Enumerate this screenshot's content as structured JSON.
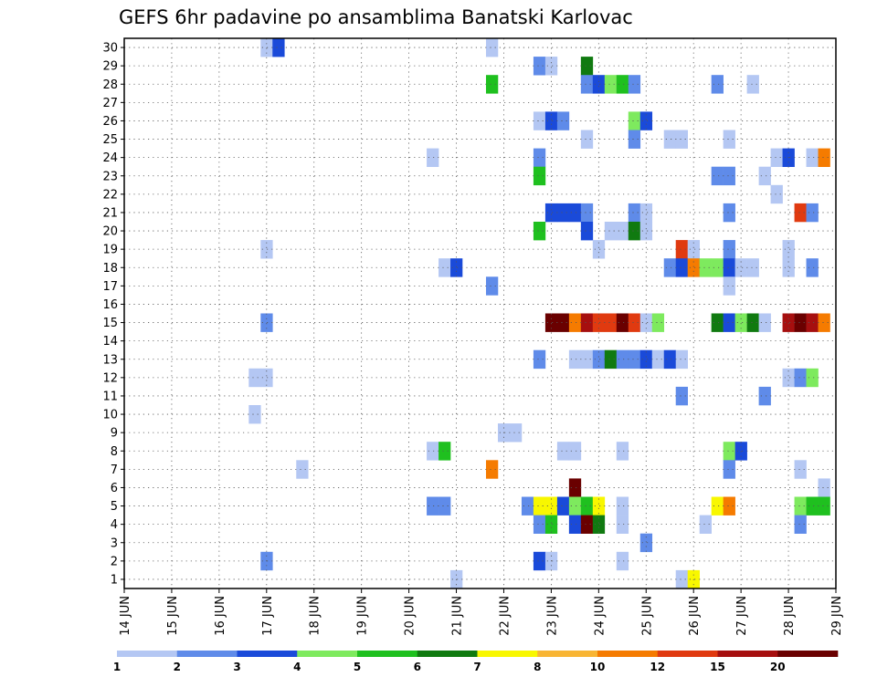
{
  "chart_data": {
    "type": "heatmap",
    "title": "GEFS 6hr padavine po ansamblima Banatski Karlovac",
    "xlabel": "",
    "ylabel": "",
    "x_tick_labels": [
      "14 JUN",
      "15 JUN",
      "16 JUN",
      "17 JUN",
      "18 JUN",
      "19 JUN",
      "20 JUN",
      "21 JUN",
      "22 JUN",
      "23 JUN",
      "24 JUN",
      "25 JUN",
      "26 JUN",
      "27 JUN",
      "28 JUN",
      "29 JUN"
    ],
    "y_tick_labels": [
      "1",
      "2",
      "3",
      "4",
      "5",
      "6",
      "7",
      "8",
      "9",
      "10",
      "11",
      "12",
      "13",
      "14",
      "15",
      "16",
      "17",
      "18",
      "19",
      "20",
      "21",
      "22",
      "23",
      "24",
      "25",
      "26",
      "27",
      "28",
      "29",
      "30"
    ],
    "xlim": [
      0,
      15
    ],
    "ylim": [
      0.5,
      30.5
    ],
    "grid": true,
    "legend": {
      "placement": "bottom",
      "tick_labels": [
        "1",
        "2",
        "3",
        "4",
        "5",
        "6",
        "7",
        "8",
        "10",
        "12",
        "15",
        "20"
      ],
      "colors": [
        "#b4c7f3",
        "#5f8be9",
        "#1a4ad9",
        "#7eea5e",
        "#1fc01f",
        "#107a10",
        "#f8f700",
        "#f8b534",
        "#f57b00",
        "#e03a10",
        "#a60f0f",
        "#6a0000"
      ]
    },
    "cells": [
      {
        "day": 3.0,
        "member": 30,
        "level": 1
      },
      {
        "day": 3.25,
        "member": 30,
        "level": 3
      },
      {
        "day": 7.75,
        "member": 30,
        "level": 1
      },
      {
        "day": 8.75,
        "member": 29,
        "level": 2
      },
      {
        "day": 9.0,
        "member": 29,
        "level": 1
      },
      {
        "day": 9.75,
        "member": 29,
        "level": 6
      },
      {
        "day": 7.75,
        "member": 28,
        "level": 5
      },
      {
        "day": 9.75,
        "member": 28,
        "level": 2
      },
      {
        "day": 10.0,
        "member": 28,
        "level": 3
      },
      {
        "day": 10.25,
        "member": 28,
        "level": 4
      },
      {
        "day": 10.5,
        "member": 28,
        "level": 5
      },
      {
        "day": 10.75,
        "member": 28,
        "level": 2
      },
      {
        "day": 12.5,
        "member": 28,
        "level": 2
      },
      {
        "day": 13.25,
        "member": 28,
        "level": 1
      },
      {
        "day": 8.75,
        "member": 26,
        "level": 1
      },
      {
        "day": 9.0,
        "member": 26,
        "level": 3
      },
      {
        "day": 9.25,
        "member": 26,
        "level": 2
      },
      {
        "day": 10.75,
        "member": 26,
        "level": 4
      },
      {
        "day": 11.0,
        "member": 26,
        "level": 3
      },
      {
        "day": 9.75,
        "member": 25,
        "level": 1
      },
      {
        "day": 10.75,
        "member": 25,
        "level": 2
      },
      {
        "day": 11.5,
        "member": 25,
        "level": 1
      },
      {
        "day": 11.75,
        "member": 25,
        "level": 1
      },
      {
        "day": 12.75,
        "member": 25,
        "level": 1
      },
      {
        "day": 6.5,
        "member": 24,
        "level": 1
      },
      {
        "day": 8.75,
        "member": 24,
        "level": 2
      },
      {
        "day": 13.75,
        "member": 24,
        "level": 1
      },
      {
        "day": 14.0,
        "member": 24,
        "level": 3
      },
      {
        "day": 14.5,
        "member": 24,
        "level": 1
      },
      {
        "day": 14.75,
        "member": 24,
        "level": 9
      },
      {
        "day": 8.75,
        "member": 23,
        "level": 5
      },
      {
        "day": 12.5,
        "member": 23,
        "level": 2
      },
      {
        "day": 12.75,
        "member": 23,
        "level": 2
      },
      {
        "day": 13.5,
        "member": 23,
        "level": 1
      },
      {
        "day": 13.75,
        "member": 22,
        "level": 1
      },
      {
        "day": 9.0,
        "member": 21,
        "level": 3
      },
      {
        "day": 9.25,
        "member": 21,
        "level": 3
      },
      {
        "day": 9.5,
        "member": 21,
        "level": 3
      },
      {
        "day": 9.75,
        "member": 21,
        "level": 2
      },
      {
        "day": 10.75,
        "member": 21,
        "level": 2
      },
      {
        "day": 11.0,
        "member": 21,
        "level": 1
      },
      {
        "day": 12.75,
        "member": 21,
        "level": 2
      },
      {
        "day": 14.25,
        "member": 21,
        "level": 10
      },
      {
        "day": 14.5,
        "member": 21,
        "level": 2
      },
      {
        "day": 8.75,
        "member": 20,
        "level": 5
      },
      {
        "day": 9.75,
        "member": 20,
        "level": 3
      },
      {
        "day": 10.25,
        "member": 20,
        "level": 1
      },
      {
        "day": 10.5,
        "member": 20,
        "level": 1
      },
      {
        "day": 10.75,
        "member": 20,
        "level": 6
      },
      {
        "day": 11.0,
        "member": 20,
        "level": 1
      },
      {
        "day": 3.0,
        "member": 19,
        "level": 1
      },
      {
        "day": 10.0,
        "member": 19,
        "level": 1
      },
      {
        "day": 11.75,
        "member": 19,
        "level": 10
      },
      {
        "day": 12.0,
        "member": 19,
        "level": 1
      },
      {
        "day": 12.75,
        "member": 19,
        "level": 2
      },
      {
        "day": 14.0,
        "member": 19,
        "level": 1
      },
      {
        "day": 6.75,
        "member": 18,
        "level": 1
      },
      {
        "day": 7.0,
        "member": 18,
        "level": 3
      },
      {
        "day": 11.5,
        "member": 18,
        "level": 2
      },
      {
        "day": 11.75,
        "member": 18,
        "level": 3
      },
      {
        "day": 12.0,
        "member": 18,
        "level": 9
      },
      {
        "day": 12.25,
        "member": 18,
        "level": 4
      },
      {
        "day": 12.5,
        "member": 18,
        "level": 4
      },
      {
        "day": 12.75,
        "member": 18,
        "level": 3
      },
      {
        "day": 13.0,
        "member": 18,
        "level": 1
      },
      {
        "day": 13.25,
        "member": 18,
        "level": 1
      },
      {
        "day": 14.0,
        "member": 18,
        "level": 1
      },
      {
        "day": 14.5,
        "member": 18,
        "level": 2
      },
      {
        "day": 7.75,
        "member": 17,
        "level": 2
      },
      {
        "day": 12.75,
        "member": 17,
        "level": 1
      },
      {
        "day": 3.0,
        "member": 15,
        "level": 2
      },
      {
        "day": 9.0,
        "member": 15,
        "level": 12
      },
      {
        "day": 9.25,
        "member": 15,
        "level": 12
      },
      {
        "day": 9.5,
        "member": 15,
        "level": 9
      },
      {
        "day": 9.75,
        "member": 15,
        "level": 11
      },
      {
        "day": 10.0,
        "member": 15,
        "level": 10
      },
      {
        "day": 10.25,
        "member": 15,
        "level": 10
      },
      {
        "day": 10.5,
        "member": 15,
        "level": 12
      },
      {
        "day": 10.75,
        "member": 15,
        "level": 10
      },
      {
        "day": 11.0,
        "member": 15,
        "level": 1
      },
      {
        "day": 11.25,
        "member": 15,
        "level": 4
      },
      {
        "day": 12.5,
        "member": 15,
        "level": 6
      },
      {
        "day": 12.75,
        "member": 15,
        "level": 3
      },
      {
        "day": 13.0,
        "member": 15,
        "level": 4
      },
      {
        "day": 13.25,
        "member": 15,
        "level": 6
      },
      {
        "day": 13.5,
        "member": 15,
        "level": 1
      },
      {
        "day": 14.0,
        "member": 15,
        "level": 11
      },
      {
        "day": 14.25,
        "member": 15,
        "level": 12
      },
      {
        "day": 14.5,
        "member": 15,
        "level": 11
      },
      {
        "day": 14.75,
        "member": 15,
        "level": 9
      },
      {
        "day": 8.75,
        "member": 13,
        "level": 2
      },
      {
        "day": 9.5,
        "member": 13,
        "level": 1
      },
      {
        "day": 9.75,
        "member": 13,
        "level": 1
      },
      {
        "day": 10.0,
        "member": 13,
        "level": 2
      },
      {
        "day": 10.25,
        "member": 13,
        "level": 6
      },
      {
        "day": 10.5,
        "member": 13,
        "level": 2
      },
      {
        "day": 10.75,
        "member": 13,
        "level": 2
      },
      {
        "day": 11.0,
        "member": 13,
        "level": 3
      },
      {
        "day": 11.25,
        "member": 13,
        "level": 1
      },
      {
        "day": 11.5,
        "member": 13,
        "level": 3
      },
      {
        "day": 11.75,
        "member": 13,
        "level": 1
      },
      {
        "day": 2.75,
        "member": 12,
        "level": 1
      },
      {
        "day": 3.0,
        "member": 12,
        "level": 1
      },
      {
        "day": 14.0,
        "member": 12,
        "level": 1
      },
      {
        "day": 14.25,
        "member": 12,
        "level": 2
      },
      {
        "day": 14.5,
        "member": 12,
        "level": 4
      },
      {
        "day": 11.75,
        "member": 11,
        "level": 2
      },
      {
        "day": 13.5,
        "member": 11,
        "level": 2
      },
      {
        "day": 2.75,
        "member": 10,
        "level": 1
      },
      {
        "day": 8.0,
        "member": 9,
        "level": 1
      },
      {
        "day": 8.25,
        "member": 9,
        "level": 1
      },
      {
        "day": 6.5,
        "member": 8,
        "level": 1
      },
      {
        "day": 6.75,
        "member": 8,
        "level": 5
      },
      {
        "day": 9.25,
        "member": 8,
        "level": 1
      },
      {
        "day": 9.5,
        "member": 8,
        "level": 1
      },
      {
        "day": 10.5,
        "member": 8,
        "level": 1
      },
      {
        "day": 12.75,
        "member": 8,
        "level": 4
      },
      {
        "day": 13.0,
        "member": 8,
        "level": 3
      },
      {
        "day": 3.75,
        "member": 7,
        "level": 1
      },
      {
        "day": 7.75,
        "member": 7,
        "level": 9
      },
      {
        "day": 12.75,
        "member": 7,
        "level": 2
      },
      {
        "day": 14.25,
        "member": 7,
        "level": 1
      },
      {
        "day": 9.5,
        "member": 6,
        "level": 12
      },
      {
        "day": 14.75,
        "member": 6,
        "level": 1
      },
      {
        "day": 6.5,
        "member": 5,
        "level": 2
      },
      {
        "day": 6.75,
        "member": 5,
        "level": 2
      },
      {
        "day": 8.5,
        "member": 5,
        "level": 2
      },
      {
        "day": 8.75,
        "member": 5,
        "level": 7
      },
      {
        "day": 9.0,
        "member": 5,
        "level": 7
      },
      {
        "day": 9.25,
        "member": 5,
        "level": 3
      },
      {
        "day": 9.5,
        "member": 5,
        "level": 4
      },
      {
        "day": 9.75,
        "member": 5,
        "level": 5
      },
      {
        "day": 10.0,
        "member": 5,
        "level": 7
      },
      {
        "day": 10.5,
        "member": 5,
        "level": 1
      },
      {
        "day": 12.5,
        "member": 5,
        "level": 7
      },
      {
        "day": 12.75,
        "member": 5,
        "level": 9
      },
      {
        "day": 14.25,
        "member": 5,
        "level": 4
      },
      {
        "day": 14.5,
        "member": 5,
        "level": 5
      },
      {
        "day": 14.75,
        "member": 5,
        "level": 5
      },
      {
        "day": 8.75,
        "member": 4,
        "level": 2
      },
      {
        "day": 9.0,
        "member": 4,
        "level": 5
      },
      {
        "day": 9.5,
        "member": 4,
        "level": 3
      },
      {
        "day": 9.75,
        "member": 4,
        "level": 12
      },
      {
        "day": 10.0,
        "member": 4,
        "level": 6
      },
      {
        "day": 10.5,
        "member": 4,
        "level": 1
      },
      {
        "day": 12.25,
        "member": 4,
        "level": 1
      },
      {
        "day": 14.25,
        "member": 4,
        "level": 2
      },
      {
        "day": 11.0,
        "member": 3,
        "level": 2
      },
      {
        "day": 3.0,
        "member": 2,
        "level": 2
      },
      {
        "day": 8.75,
        "member": 2,
        "level": 3
      },
      {
        "day": 9.0,
        "member": 2,
        "level": 1
      },
      {
        "day": 10.5,
        "member": 2,
        "level": 1
      },
      {
        "day": 7.0,
        "member": 1,
        "level": 1
      },
      {
        "day": 11.75,
        "member": 1,
        "level": 1
      },
      {
        "day": 12.0,
        "member": 1,
        "level": 7
      }
    ]
  }
}
